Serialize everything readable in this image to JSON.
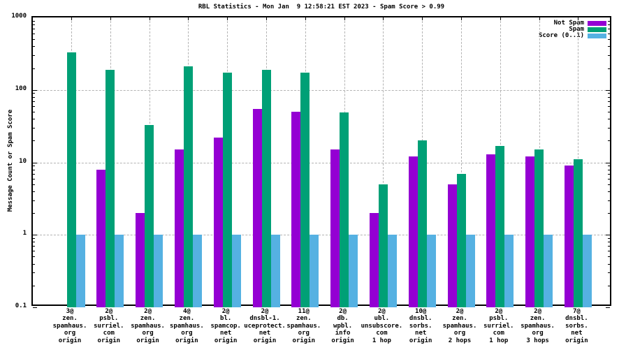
{
  "chart_data": {
    "type": "bar",
    "title": "RBL Statistics - Mon Jan  9 12:58:21 EST 2023 - Spam Score > 0.99",
    "ylabel": "Message Count or Spam Score",
    "xlabel": "",
    "yscale": "log",
    "ylim": [
      0.1,
      1000
    ],
    "ytick_values": [
      0.1,
      1,
      10,
      100,
      1000
    ],
    "ytick_labels": [
      "0.1",
      "1",
      "10",
      "100",
      "1000"
    ],
    "grid": true,
    "legend_position": "top-right-inside",
    "colors": {
      "not_spam": "#9400d3",
      "spam": "#00a076",
      "score": "#55b1e2",
      "grid": "#b3b3b3",
      "axis": "#000000",
      "background": "#ffffff"
    },
    "categories": [
      [
        "3@",
        "zen.",
        "spamhaus.",
        "org",
        "origin"
      ],
      [
        "2@",
        "psbl.",
        "surriel.",
        "com",
        "origin"
      ],
      [
        "2@",
        "zen.",
        "spamhaus.",
        "org",
        "origin"
      ],
      [
        "4@",
        "zen.",
        "spamhaus.",
        "org",
        "origin"
      ],
      [
        "2@",
        "bl.",
        "spamcop.",
        "net",
        "origin"
      ],
      [
        "2@",
        "dnsbl-1.",
        "uceprotect.",
        "net",
        "origin"
      ],
      [
        "11@",
        "zen.",
        "spamhaus.",
        "org",
        "origin"
      ],
      [
        "2@",
        "db.",
        "wpbl.",
        "info",
        "origin"
      ],
      [
        "2@",
        "ubl.",
        "unsubscore.",
        "com",
        "1 hop"
      ],
      [
        "10@",
        "dnsbl.",
        "sorbs.",
        "net",
        "origin"
      ],
      [
        "2@",
        "zen.",
        "spamhaus.",
        "org",
        "2 hops"
      ],
      [
        "2@",
        "psbl.",
        "surriel.",
        "com",
        "1 hop"
      ],
      [
        "2@",
        "zen.",
        "spamhaus.",
        "org",
        "3 hops"
      ],
      [
        "7@",
        "dnsbl.",
        "sorbs.",
        "net",
        "origin"
      ]
    ],
    "series": [
      {
        "name": "Not Spam",
        "color_key": "not_spam",
        "values": [
          null,
          8,
          2,
          15,
          22,
          55,
          50,
          15,
          2,
          12,
          5,
          13,
          12,
          9
        ]
      },
      {
        "name": "Spam",
        "color_key": "spam",
        "values": [
          330,
          190,
          33,
          210,
          175,
          190,
          175,
          49,
          5,
          20,
          7,
          17,
          15,
          11
        ]
      },
      {
        "name": "Score (0..1)",
        "color_key": "score",
        "values": [
          1,
          1,
          1,
          1,
          1,
          1,
          1,
          1,
          1,
          1,
          1,
          1,
          1,
          1
        ]
      }
    ]
  }
}
